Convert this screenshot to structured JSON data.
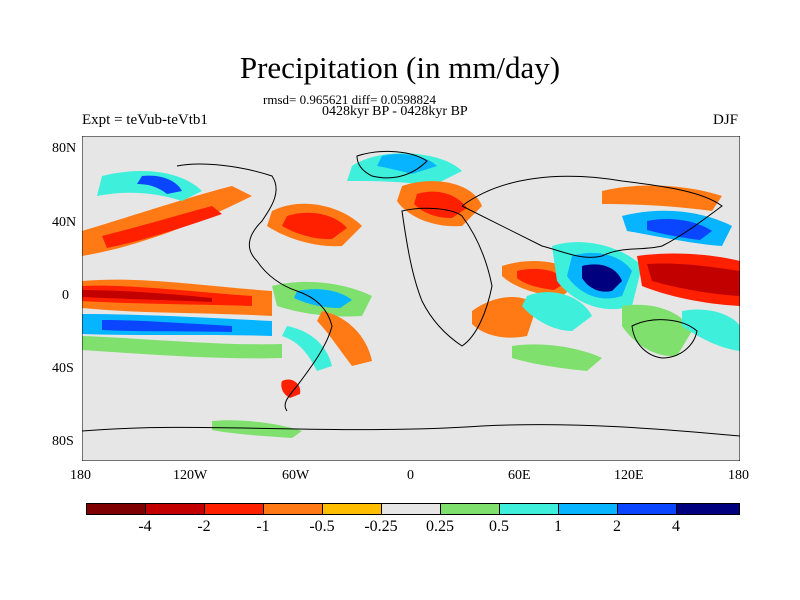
{
  "title": "Precipitation (in mm/day)",
  "stats": "rmsd= 0.965621 diff= 0.0598824",
  "period": "0428kyr BP - 0428kyr BP",
  "experiment": "Expt = teVub-teVtb1",
  "season": "DJF",
  "map": {
    "lat_ticks": [
      "80N",
      "40N",
      "0",
      "40S",
      "80S"
    ],
    "lon_ticks": [
      "180",
      "120W",
      "60W",
      "0",
      "60E",
      "120E",
      "180"
    ]
  },
  "colorbar": {
    "colors": [
      "#7f0000",
      "#c30000",
      "#ff2000",
      "#ff7a14",
      "#ffbe00",
      "#e6e6e6",
      "#7fe06e",
      "#3ef0dc",
      "#06b4ff",
      "#0a46ff",
      "#00007f"
    ],
    "labels": [
      "-4",
      "-2",
      "-1",
      "-0.5",
      "-0.25",
      "0.25",
      "0.5",
      "1",
      "2",
      "4"
    ]
  }
}
